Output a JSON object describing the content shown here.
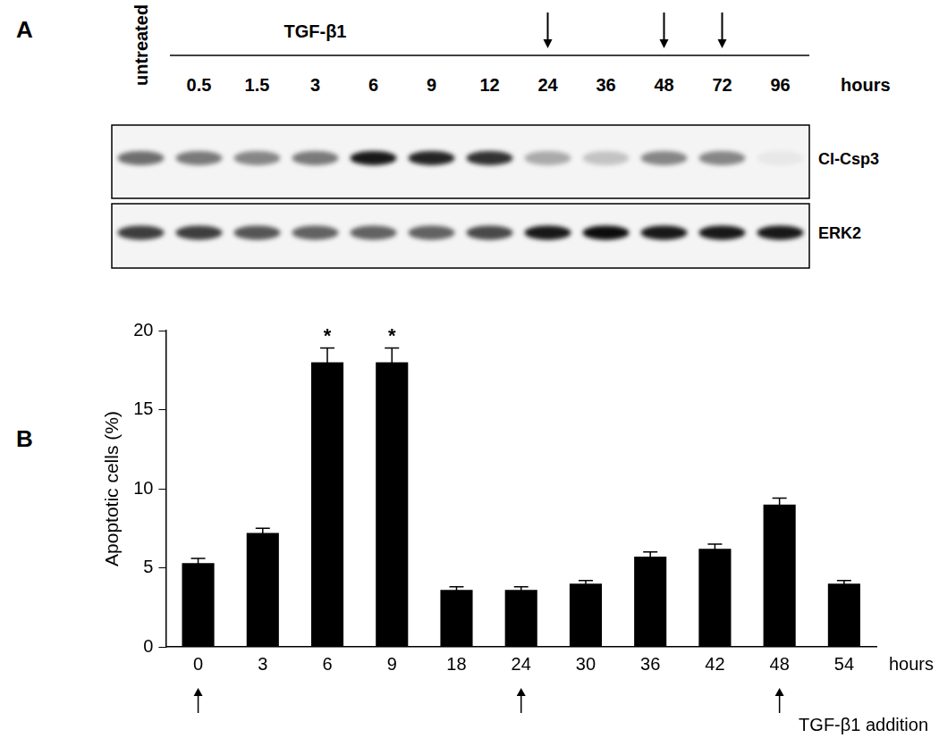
{
  "panel_labels": [
    "A",
    "B"
  ],
  "blot": {
    "control_label": "untreated",
    "treatment_label": "TGF-β1",
    "time_points": [
      "0.5",
      "1.5",
      "3",
      "6",
      "9",
      "12",
      "24",
      "36",
      "48",
      "72",
      "96"
    ],
    "time_unit": "hours",
    "marked_time_points": [
      "24",
      "48",
      "72"
    ],
    "rows": [
      {
        "name": "Cl-Csp3",
        "band_intensity": [
          0.55,
          0.5,
          0.45,
          0.5,
          0.9,
          0.85,
          0.8,
          0.3,
          0.2,
          0.45,
          0.45,
          0.05
        ]
      },
      {
        "name": "ERK2",
        "band_intensity": [
          0.75,
          0.75,
          0.65,
          0.6,
          0.6,
          0.6,
          0.7,
          0.9,
          0.95,
          0.9,
          0.9,
          0.9
        ]
      }
    ]
  },
  "chart_data": {
    "type": "bar",
    "categories": [
      "0",
      "3",
      "6",
      "9",
      "18",
      "24",
      "30",
      "36",
      "42",
      "48",
      "54"
    ],
    "values": [
      5.3,
      7.2,
      18,
      18,
      3.6,
      3.6,
      4.0,
      5.7,
      6.2,
      9.0,
      4.0
    ],
    "errors": [
      0.3,
      0.3,
      0.9,
      0.9,
      0.2,
      0.2,
      0.2,
      0.3,
      0.3,
      0.4,
      0.2
    ],
    "color": "#000000",
    "ylabel": "Apoptotic cells (%)",
    "xlabel": "hours",
    "ylim": [
      0,
      20
    ],
    "yticks": [
      0,
      5,
      10,
      15,
      20
    ],
    "grid": false,
    "annotations": [
      {
        "category": "6",
        "text": "*"
      },
      {
        "category": "9",
        "text": "*"
      }
    ],
    "treatment": {
      "categories": [
        "0",
        "24",
        "48"
      ],
      "label": "TGF-β1 addition"
    }
  }
}
